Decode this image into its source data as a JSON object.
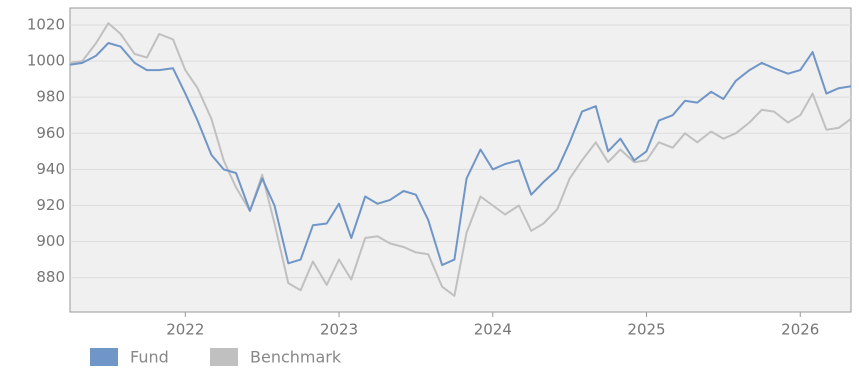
{
  "chart_data": {
    "type": "line",
    "x": [
      2021.25,
      2021.33,
      2021.42,
      2021.5,
      2021.58,
      2021.67,
      2021.75,
      2021.83,
      2021.92,
      2022,
      2022.08,
      2022.17,
      2022.25,
      2022.33,
      2022.42,
      2022.5,
      2022.58,
      2022.67,
      2022.75,
      2022.83,
      2022.92,
      2023,
      2023.08,
      2023.17,
      2023.25,
      2023.33,
      2023.42,
      2023.5,
      2023.58,
      2023.67,
      2023.75,
      2023.83,
      2023.92,
      2024,
      2024.08,
      2024.17,
      2024.25,
      2024.33,
      2024.42,
      2024.5,
      2024.58,
      2024.67,
      2024.75,
      2024.83,
      2024.92,
      2025,
      2025.08,
      2025.17,
      2025.25,
      2025.33,
      2025.42,
      2025.5,
      2025.58,
      2025.67,
      2025.75,
      2025.83,
      2025.92,
      2026,
      2026.08,
      2026.17,
      2026.25,
      2026.33
    ],
    "series": [
      {
        "name": "Fund",
        "color": "#7096c8",
        "values": [
          998,
          999,
          1003,
          1010,
          1008,
          999,
          995,
          995,
          996,
          982,
          967,
          948,
          940,
          938,
          917,
          935,
          920,
          888,
          890,
          909,
          910,
          921,
          902,
          925,
          921,
          923,
          928,
          926,
          912,
          887,
          890,
          935,
          951,
          940,
          943,
          945,
          926,
          933,
          940,
          955,
          972,
          975,
          950,
          957,
          945,
          950,
          967,
          970,
          978,
          977,
          983,
          979,
          989,
          995,
          999,
          996,
          993,
          995,
          1005,
          982,
          985,
          986
        ]
      },
      {
        "name": "Benchmark",
        "color": "#c0c0c0",
        "values": [
          999,
          1000,
          1010,
          1021,
          1015,
          1004,
          1002,
          1015,
          1012,
          995,
          985,
          968,
          945,
          930,
          917,
          937,
          910,
          877,
          873,
          889,
          876,
          890,
          879,
          902,
          903,
          899,
          897,
          894,
          893,
          875,
          870,
          905,
          925,
          920,
          915,
          920,
          906,
          910,
          918,
          935,
          945,
          955,
          944,
          951,
          944,
          945,
          955,
          952,
          960,
          955,
          961,
          957,
          960,
          966,
          973,
          972,
          966,
          970,
          982,
          962,
          963,
          968
        ]
      }
    ],
    "xlim": [
      2021.25,
      2026.33
    ],
    "xticks": [
      2022,
      2023,
      2024,
      2025,
      2026
    ],
    "ylim": [
      861,
      1029.4
    ],
    "yticks": [
      880,
      900,
      920,
      940,
      960,
      980,
      1000,
      1020
    ],
    "grid": true
  }
}
